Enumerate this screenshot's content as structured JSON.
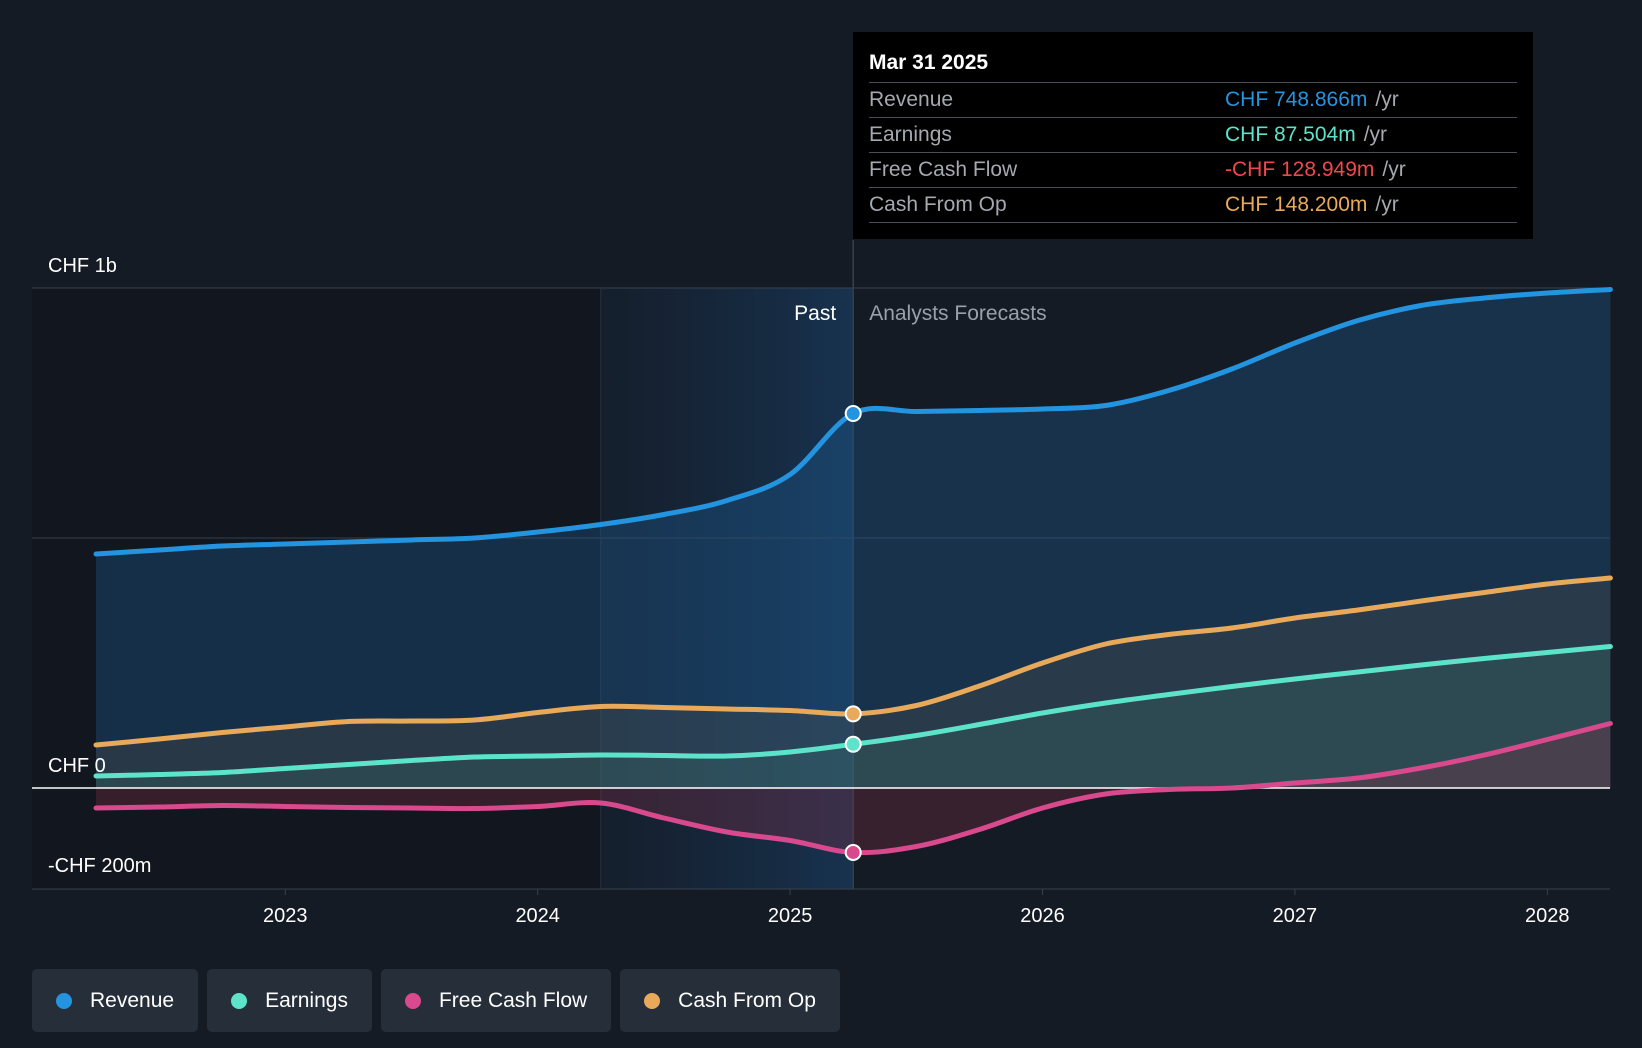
{
  "chart_data": {
    "type": "area",
    "title": "",
    "x_ticks": [
      "2023",
      "2024",
      "2025",
      "2026",
      "2027",
      "2028"
    ],
    "y_axis_labels": [
      "CHF 1b",
      "CHF 0",
      "-CHF 200m"
    ],
    "ylim": [
      -200,
      1000
    ],
    "y_unit": "CHF m",
    "divider_date": 2025.25,
    "past_label": "Past",
    "forecast_label": "Analysts Forecasts",
    "series": [
      {
        "name": "Revenue",
        "color": "#2394e0",
        "x": [
          2022.25,
          2022.5,
          2022.75,
          2023.0,
          2023.25,
          2023.5,
          2023.75,
          2024.0,
          2024.25,
          2024.5,
          2024.75,
          2025.0,
          2025.25,
          2025.5,
          2025.75,
          2026.0,
          2026.25,
          2026.5,
          2026.75,
          2027.0,
          2027.25,
          2027.5,
          2027.75,
          2028.0,
          2028.25
        ],
        "values": [
          468,
          476,
          484,
          488,
          492,
          496,
          500,
          512,
          527,
          547,
          575,
          627,
          749,
          753,
          755,
          758,
          765,
          795,
          838,
          890,
          935,
          965,
          980,
          990,
          997
        ]
      },
      {
        "name": "Earnings",
        "color": "#5de3c9",
        "x": [
          2022.25,
          2022.5,
          2022.75,
          2023.0,
          2023.25,
          2023.5,
          2023.75,
          2024.0,
          2024.25,
          2024.5,
          2024.75,
          2025.0,
          2025.25,
          2025.5,
          2025.75,
          2026.0,
          2026.25,
          2026.5,
          2026.75,
          2027.0,
          2027.25,
          2027.5,
          2027.75,
          2028.0,
          2028.25
        ],
        "values": [
          24,
          27,
          31,
          39,
          47,
          55,
          62,
          64,
          66,
          65,
          64,
          72,
          87.5,
          105,
          127,
          150,
          170,
          187,
          203,
          218,
          232,
          246,
          259,
          271,
          283
        ]
      },
      {
        "name": "Free Cash Flow",
        "color": "#d9498d",
        "x": [
          2022.25,
          2022.5,
          2022.75,
          2023.0,
          2023.25,
          2023.5,
          2023.75,
          2024.0,
          2024.25,
          2024.5,
          2024.75,
          2025.0,
          2025.25,
          2025.5,
          2025.75,
          2026.0,
          2026.25,
          2026.5,
          2026.75,
          2027.0,
          2027.25,
          2027.5,
          2027.75,
          2028.0,
          2028.25
        ],
        "values": [
          -40,
          -38,
          -35,
          -37,
          -39,
          -40,
          -41,
          -37,
          -30,
          -60,
          -88,
          -105,
          -128.9,
          -117,
          -83,
          -40,
          -12,
          -3,
          0,
          10,
          20,
          40,
          66,
          97,
          129
        ]
      },
      {
        "name": "Cash From Op",
        "color": "#e8a95b",
        "x": [
          2022.25,
          2022.5,
          2022.75,
          2023.0,
          2023.25,
          2023.5,
          2023.75,
          2024.0,
          2024.25,
          2024.5,
          2024.75,
          2025.0,
          2025.25,
          2025.5,
          2025.75,
          2026.0,
          2026.25,
          2026.5,
          2026.75,
          2027.0,
          2027.25,
          2027.5,
          2027.75,
          2028.0,
          2028.25
        ],
        "values": [
          86,
          98,
          111,
          122,
          133,
          134,
          136,
          151,
          163,
          161,
          158,
          155,
          148.2,
          165,
          204,
          250,
          288,
          307,
          320,
          340,
          356,
          374,
          391,
          408,
          420
        ]
      }
    ]
  },
  "tooltip": {
    "date": "Mar 31 2025",
    "rows": [
      {
        "label": "Revenue",
        "value": "CHF 748.866m",
        "unit": "/yr",
        "color": "#2394e0"
      },
      {
        "label": "Earnings",
        "value": "CHF 87.504m",
        "unit": "/yr",
        "color": "#5de3c9"
      },
      {
        "label": "Free Cash Flow",
        "value": "-CHF 128.949m",
        "unit": "/yr",
        "color": "#f0474e"
      },
      {
        "label": "Cash From Op",
        "value": "CHF 148.200m",
        "unit": "/yr",
        "color": "#e8a95b"
      }
    ]
  },
  "legend": [
    {
      "label": "Revenue",
      "color": "#2394e0"
    },
    {
      "label": "Earnings",
      "color": "#5de3c9"
    },
    {
      "label": "Free Cash Flow",
      "color": "#d9498d"
    },
    {
      "label": "Cash From Op",
      "color": "#e8a95b"
    }
  ]
}
